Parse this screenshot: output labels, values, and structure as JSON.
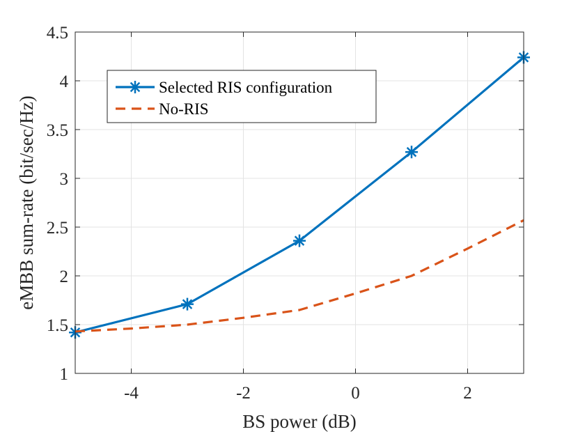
{
  "chart_data": {
    "type": "line",
    "xlabel": "BS power (dB)",
    "ylabel": "eMBB sum-rate (bit/sec/Hz)",
    "xlim": [
      -5,
      3
    ],
    "ylim": [
      1,
      4.5
    ],
    "xticks": [
      -4,
      -2,
      0,
      2
    ],
    "xtick_labels": [
      "-4",
      "-2",
      "0",
      "2"
    ],
    "yticks": [
      1,
      1.5,
      2,
      2.5,
      3,
      3.5,
      4,
      4.5
    ],
    "ytick_labels": [
      "1",
      "1.5",
      "2",
      "2.5",
      "3",
      "3.5",
      "4",
      "4.5"
    ],
    "grid": true,
    "legend_position": "top-left",
    "series": [
      {
        "name": "Selected RIS configuration",
        "color": "#0072BD",
        "style": "solid",
        "marker": "asterisk",
        "x": [
          -5,
          -3,
          -1,
          1,
          3
        ],
        "y": [
          1.42,
          1.71,
          2.36,
          3.27,
          4.24
        ]
      },
      {
        "name": "No-RIS",
        "color": "#D95319",
        "style": "dashed",
        "marker": "none",
        "x": [
          -5,
          -4,
          -3,
          -2,
          -1,
          0,
          1,
          2,
          3
        ],
        "y": [
          1.43,
          1.46,
          1.5,
          1.57,
          1.65,
          1.82,
          2.0,
          2.28,
          2.57
        ]
      }
    ]
  }
}
